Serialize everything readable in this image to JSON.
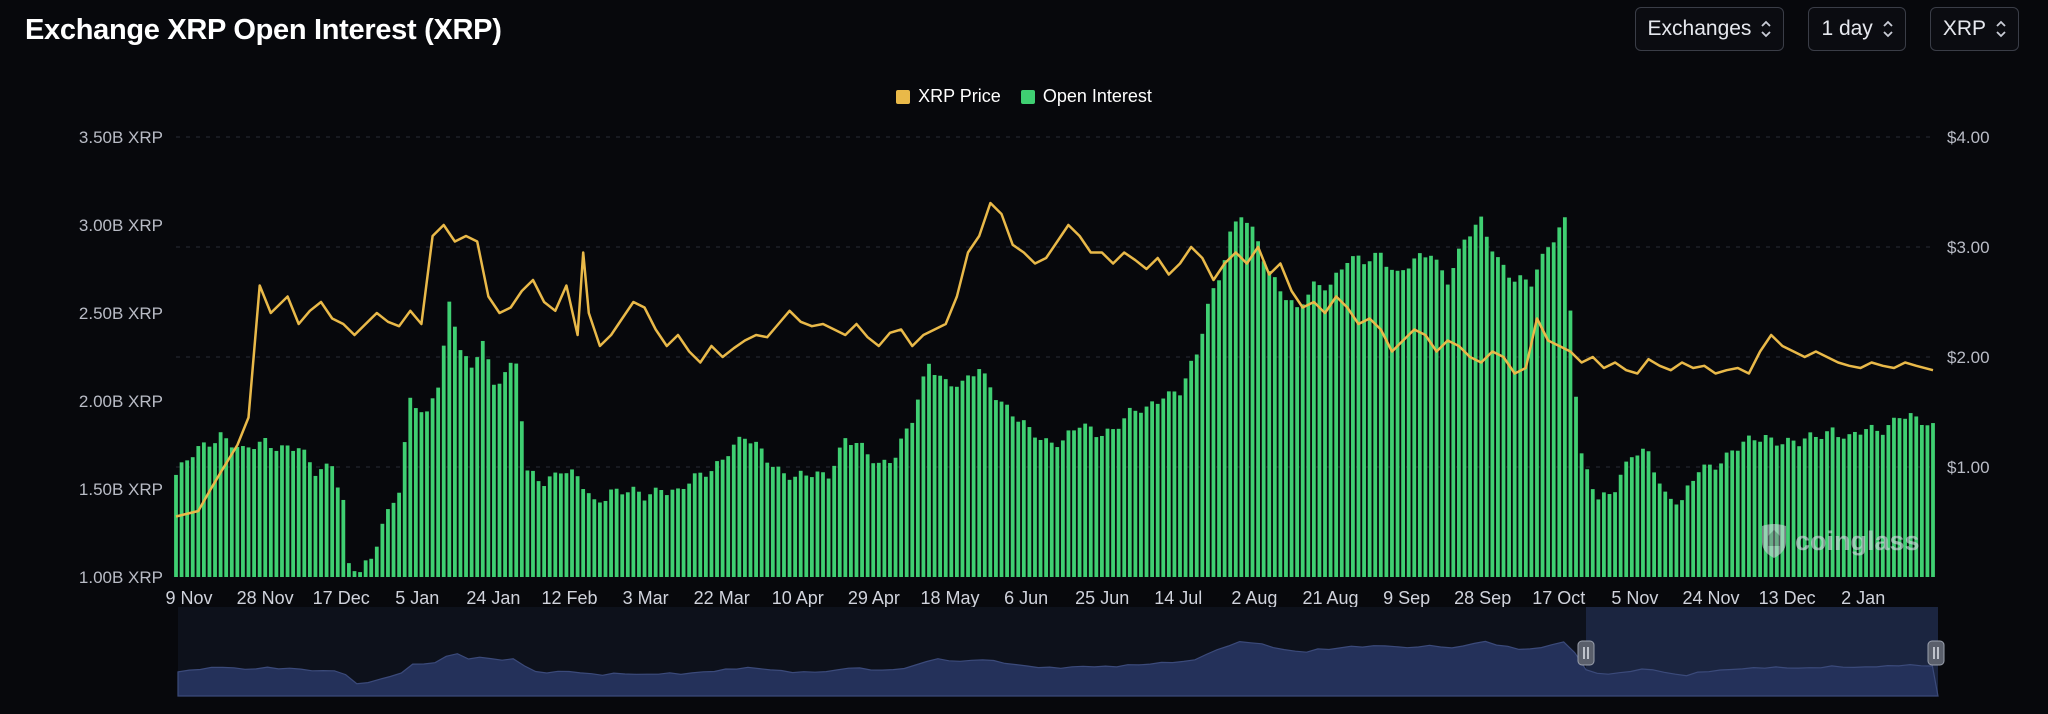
{
  "header": {
    "title": "Exchange XRP Open Interest (XRP)",
    "selects": [
      {
        "label": "Exchanges"
      },
      {
        "label": "1 day"
      },
      {
        "label": "XRP"
      }
    ]
  },
  "colors": {
    "price": "#e9b949",
    "open_interest": "#3fcf72",
    "background": "#07080c",
    "navigator": "#3b4a7a"
  },
  "watermark": {
    "text": "coinglass"
  },
  "chart_data": {
    "type": "bar",
    "title": "Exchange XRP Open Interest (XRP)",
    "legend": {
      "position": "top-center",
      "entries": [
        "XRP Price",
        "Open Interest"
      ]
    },
    "x_tick_labels": [
      "9 Nov",
      "28 Nov",
      "17 Dec",
      "5 Jan",
      "24 Jan",
      "12 Feb",
      "3 Mar",
      "22 Mar",
      "10 Apr",
      "29 Apr",
      "18 May",
      "6 Jun",
      "25 Jun",
      "14 Jul",
      "2 Aug",
      "21 Aug",
      "9 Sep",
      "28 Sep",
      "17 Oct",
      "5 Nov",
      "24 Nov",
      "13 Dec",
      "2 Jan"
    ],
    "y_left": {
      "ticks": [
        "1.00B XRP",
        "1.50B XRP",
        "2.00B XRP",
        "2.50B XRP",
        "3.00B XRP",
        "3.50B XRP"
      ],
      "range": [
        1.0,
        3.5
      ],
      "unit": "B XRP"
    },
    "y_right": {
      "ticks": [
        "$1.00",
        "$2.00",
        "$3.00",
        "$4.00"
      ],
      "range": [
        0,
        4.0
      ],
      "unit": "USD"
    },
    "grid": true,
    "series": [
      {
        "name": "Open Interest",
        "type": "bar",
        "axis": "left",
        "points": [
          [
            0,
            1.58
          ],
          [
            4,
            1.72
          ],
          [
            8,
            1.82
          ],
          [
            12,
            1.7
          ],
          [
            16,
            1.78
          ],
          [
            19,
            1.74
          ],
          [
            22,
            1.72
          ],
          [
            25,
            1.6
          ],
          [
            28,
            1.66
          ],
          [
            30,
            1.42
          ],
          [
            31,
            1.05
          ],
          [
            33,
            1.02
          ],
          [
            35,
            1.1
          ],
          [
            37,
            1.32
          ],
          [
            40,
            1.5
          ],
          [
            42,
            1.98
          ],
          [
            45,
            1.92
          ],
          [
            47,
            2.12
          ],
          [
            49,
            2.55
          ],
          [
            51,
            2.3
          ],
          [
            53,
            2.15
          ],
          [
            55,
            2.36
          ],
          [
            57,
            2.1
          ],
          [
            59,
            2.18
          ],
          [
            61,
            2.2
          ],
          [
            63,
            1.58
          ],
          [
            66,
            1.55
          ],
          [
            69,
            1.62
          ],
          [
            72,
            1.55
          ],
          [
            75,
            1.42
          ],
          [
            78,
            1.5
          ],
          [
            81,
            1.48
          ],
          [
            84,
            1.45
          ],
          [
            87,
            1.52
          ],
          [
            90,
            1.48
          ],
          [
            93,
            1.55
          ],
          [
            96,
            1.62
          ],
          [
            99,
            1.72
          ],
          [
            102,
            1.78
          ],
          [
            105,
            1.72
          ],
          [
            108,
            1.62
          ],
          [
            111,
            1.55
          ],
          [
            114,
            1.58
          ],
          [
            117,
            1.6
          ],
          [
            120,
            1.78
          ],
          [
            123,
            1.72
          ],
          [
            126,
            1.65
          ],
          [
            129,
            1.7
          ],
          [
            132,
            1.88
          ],
          [
            135,
            2.22
          ],
          [
            138,
            2.12
          ],
          [
            141,
            2.08
          ],
          [
            144,
            2.18
          ],
          [
            147,
            2.05
          ],
          [
            150,
            1.92
          ],
          [
            153,
            1.82
          ],
          [
            156,
            1.78
          ],
          [
            159,
            1.78
          ],
          [
            162,
            1.85
          ],
          [
            165,
            1.82
          ],
          [
            168,
            1.85
          ],
          [
            171,
            1.92
          ],
          [
            174,
            1.95
          ],
          [
            177,
            2.05
          ],
          [
            180,
            2.05
          ],
          [
            183,
            2.25
          ],
          [
            185,
            2.55
          ],
          [
            187,
            2.72
          ],
          [
            189,
            2.95
          ],
          [
            191,
            3.05
          ],
          [
            194,
            2.9
          ],
          [
            196,
            2.75
          ],
          [
            199,
            2.6
          ],
          [
            201,
            2.5
          ],
          [
            204,
            2.65
          ],
          [
            207,
            2.68
          ],
          [
            210,
            2.8
          ],
          [
            213,
            2.78
          ],
          [
            216,
            2.85
          ],
          [
            219,
            2.72
          ],
          [
            222,
            2.78
          ],
          [
            225,
            2.85
          ],
          [
            228,
            2.7
          ],
          [
            231,
            2.9
          ],
          [
            234,
            3.02
          ],
          [
            237,
            2.82
          ],
          [
            240,
            2.68
          ],
          [
            243,
            2.66
          ],
          [
            246,
            2.9
          ],
          [
            249,
            3.03
          ],
          [
            251,
            2.02
          ],
          [
            252,
            1.66
          ],
          [
            255,
            1.45
          ],
          [
            258,
            1.52
          ],
          [
            261,
            1.68
          ],
          [
            264,
            1.7
          ],
          [
            267,
            1.48
          ],
          [
            270,
            1.42
          ],
          [
            273,
            1.6
          ],
          [
            276,
            1.65
          ],
          [
            279,
            1.72
          ],
          [
            282,
            1.76
          ],
          [
            285,
            1.8
          ],
          [
            288,
            1.78
          ],
          [
            291,
            1.75
          ],
          [
            294,
            1.8
          ],
          [
            297,
            1.85
          ],
          [
            300,
            1.78
          ],
          [
            303,
            1.83
          ],
          [
            306,
            1.85
          ],
          [
            309,
            1.92
          ],
          [
            312,
            1.88
          ],
          [
            315,
            1.86
          ]
        ]
      },
      {
        "name": "XRP Price",
        "type": "line",
        "axis": "right",
        "points": [
          [
            0,
            0.55
          ],
          [
            4,
            0.6
          ],
          [
            6,
            0.78
          ],
          [
            8,
            0.95
          ],
          [
            11,
            1.2
          ],
          [
            13,
            1.45
          ],
          [
            15,
            2.65
          ],
          [
            17,
            2.4
          ],
          [
            20,
            2.55
          ],
          [
            22,
            2.3
          ],
          [
            24,
            2.42
          ],
          [
            26,
            2.5
          ],
          [
            28,
            2.35
          ],
          [
            30,
            2.3
          ],
          [
            32,
            2.2
          ],
          [
            34,
            2.3
          ],
          [
            36,
            2.4
          ],
          [
            38,
            2.32
          ],
          [
            40,
            2.28
          ],
          [
            42,
            2.42
          ],
          [
            44,
            2.3
          ],
          [
            46,
            3.1
          ],
          [
            48,
            3.2
          ],
          [
            50,
            3.05
          ],
          [
            52,
            3.1
          ],
          [
            54,
            3.05
          ],
          [
            56,
            2.55
          ],
          [
            58,
            2.4
          ],
          [
            60,
            2.45
          ],
          [
            62,
            2.6
          ],
          [
            64,
            2.7
          ],
          [
            66,
            2.5
          ],
          [
            68,
            2.42
          ],
          [
            70,
            2.65
          ],
          [
            72,
            2.2
          ],
          [
            73,
            2.95
          ],
          [
            74,
            2.4
          ],
          [
            76,
            2.1
          ],
          [
            78,
            2.2
          ],
          [
            80,
            2.35
          ],
          [
            82,
            2.5
          ],
          [
            84,
            2.45
          ],
          [
            86,
            2.25
          ],
          [
            88,
            2.1
          ],
          [
            90,
            2.2
          ],
          [
            92,
            2.05
          ],
          [
            94,
            1.95
          ],
          [
            96,
            2.1
          ],
          [
            98,
            2.0
          ],
          [
            100,
            2.08
          ],
          [
            102,
            2.15
          ],
          [
            104,
            2.2
          ],
          [
            106,
            2.18
          ],
          [
            108,
            2.3
          ],
          [
            110,
            2.42
          ],
          [
            112,
            2.32
          ],
          [
            114,
            2.28
          ],
          [
            116,
            2.3
          ],
          [
            118,
            2.25
          ],
          [
            120,
            2.2
          ],
          [
            122,
            2.3
          ],
          [
            124,
            2.18
          ],
          [
            126,
            2.1
          ],
          [
            128,
            2.22
          ],
          [
            130,
            2.25
          ],
          [
            132,
            2.1
          ],
          [
            134,
            2.2
          ],
          [
            136,
            2.25
          ],
          [
            138,
            2.3
          ],
          [
            140,
            2.55
          ],
          [
            142,
            2.95
          ],
          [
            144,
            3.1
          ],
          [
            146,
            3.4
          ],
          [
            148,
            3.3
          ],
          [
            150,
            3.02
          ],
          [
            152,
            2.95
          ],
          [
            154,
            2.85
          ],
          [
            156,
            2.9
          ],
          [
            158,
            3.05
          ],
          [
            160,
            3.2
          ],
          [
            162,
            3.1
          ],
          [
            164,
            2.95
          ],
          [
            166,
            2.95
          ],
          [
            168,
            2.85
          ],
          [
            170,
            2.95
          ],
          [
            172,
            2.88
          ],
          [
            174,
            2.8
          ],
          [
            176,
            2.9
          ],
          [
            178,
            2.75
          ],
          [
            180,
            2.85
          ],
          [
            182,
            3.0
          ],
          [
            184,
            2.9
          ],
          [
            186,
            2.7
          ],
          [
            188,
            2.85
          ],
          [
            190,
            2.95
          ],
          [
            192,
            2.85
          ],
          [
            194,
            3.0
          ],
          [
            196,
            2.75
          ],
          [
            198,
            2.85
          ],
          [
            200,
            2.6
          ],
          [
            202,
            2.45
          ],
          [
            204,
            2.5
          ],
          [
            206,
            2.4
          ],
          [
            208,
            2.55
          ],
          [
            210,
            2.45
          ],
          [
            212,
            2.3
          ],
          [
            214,
            2.35
          ],
          [
            216,
            2.25
          ],
          [
            218,
            2.05
          ],
          [
            220,
            2.15
          ],
          [
            222,
            2.25
          ],
          [
            224,
            2.2
          ],
          [
            226,
            2.05
          ],
          [
            228,
            2.15
          ],
          [
            230,
            2.1
          ],
          [
            232,
            2.0
          ],
          [
            234,
            1.95
          ],
          [
            236,
            2.05
          ],
          [
            238,
            2.0
          ],
          [
            240,
            1.85
          ],
          [
            242,
            1.9
          ],
          [
            244,
            2.35
          ],
          [
            246,
            2.15
          ],
          [
            248,
            2.1
          ],
          [
            250,
            2.05
          ],
          [
            252,
            1.95
          ],
          [
            254,
            2.0
          ],
          [
            256,
            1.9
          ],
          [
            258,
            1.95
          ],
          [
            260,
            1.88
          ],
          [
            262,
            1.85
          ],
          [
            264,
            1.98
          ],
          [
            266,
            1.92
          ],
          [
            268,
            1.88
          ],
          [
            270,
            1.95
          ],
          [
            272,
            1.9
          ],
          [
            274,
            1.92
          ],
          [
            276,
            1.85
          ],
          [
            278,
            1.88
          ],
          [
            280,
            1.9
          ],
          [
            282,
            1.85
          ],
          [
            284,
            2.05
          ],
          [
            286,
            2.2
          ],
          [
            288,
            2.1
          ],
          [
            290,
            2.05
          ],
          [
            292,
            2.0
          ],
          [
            294,
            2.05
          ],
          [
            296,
            2.0
          ],
          [
            298,
            1.95
          ],
          [
            300,
            1.92
          ],
          [
            302,
            1.9
          ],
          [
            304,
            1.95
          ],
          [
            306,
            1.92
          ],
          [
            308,
            1.9
          ],
          [
            310,
            1.95
          ],
          [
            312,
            1.92
          ],
          [
            315,
            1.88
          ]
        ]
      }
    ],
    "navigator": {
      "selected_start_fraction": 0.8,
      "selected_end_fraction": 1.0
    }
  }
}
